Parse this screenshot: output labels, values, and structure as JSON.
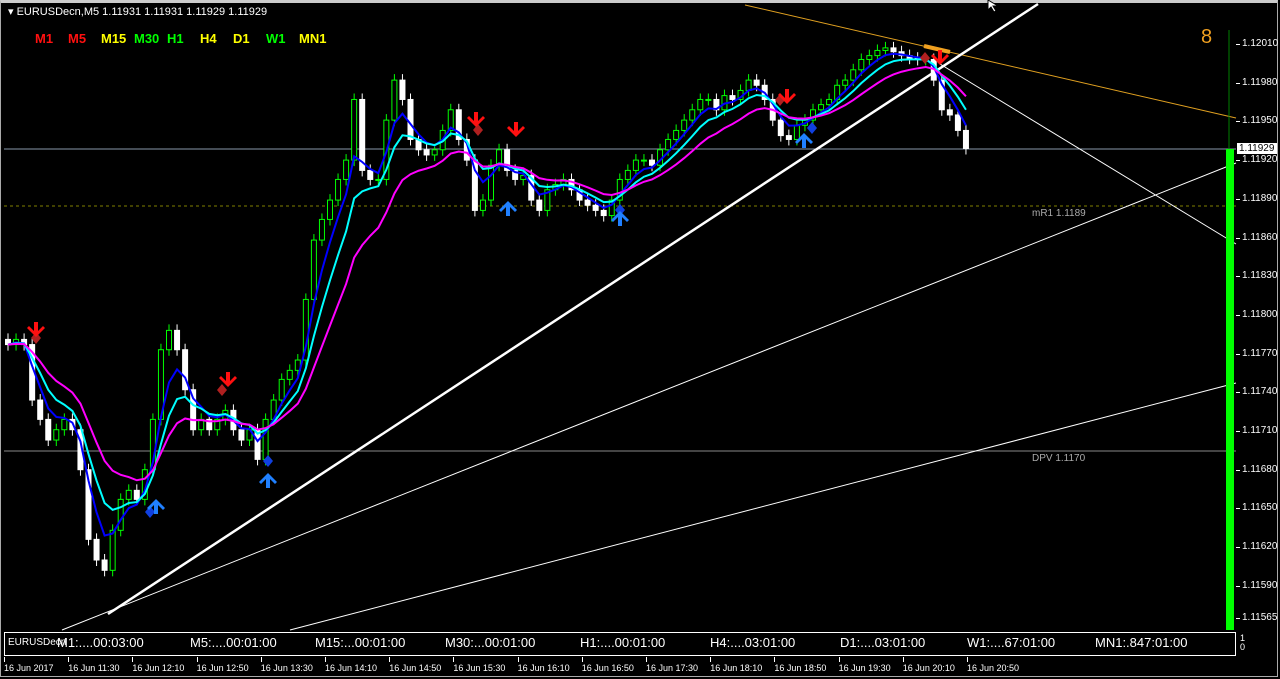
{
  "header": {
    "title": "EURUSDecn,M5  1.11931 1.11931 1.11929 1.11929",
    "menu_icon": "triangle-down-icon"
  },
  "timeframes": [
    {
      "label": "M1",
      "color": "#ff1010"
    },
    {
      "label": "M5",
      "color": "#ff1010"
    },
    {
      "label": "M15",
      "color": "#ffff00"
    },
    {
      "label": "M30",
      "color": "#00ff00"
    },
    {
      "label": "H1",
      "color": "#00ff00"
    },
    {
      "label": "H4",
      "color": "#ffff00"
    },
    {
      "label": "D1",
      "color": "#ffff00"
    },
    {
      "label": "W1",
      "color": "#00ff00"
    },
    {
      "label": "MN1",
      "color": "#ffff00"
    }
  ],
  "counter": "8",
  "levels": {
    "mR1": "mR1 1.1189",
    "DPV": "DPV 1.1170"
  },
  "bid_label": "1.11929",
  "panel": {
    "symbol": "EURUSDecn",
    "timers": [
      "M1:....00:03:00",
      "M5:....00:01:00",
      "M15:...00:01:00",
      "M30:...00:01:00",
      "H1:....00:01:00",
      "H4:....03:01:00",
      "D1:....03:01:00",
      "W1:....67:01:00",
      "MN1:.847:01:00"
    ],
    "scale": [
      "1",
      "0"
    ]
  },
  "chart_data": {
    "type": "candlestick",
    "symbol": "EURUSDecn",
    "timeframe": "M5",
    "ylim": [
      1.11565,
      1.1203
    ],
    "y_ticks": [
      "1.12010",
      "1.11980",
      "1.11950",
      "1.11920",
      "1.11890",
      "1.11860",
      "1.11830",
      "1.11800",
      "1.11770",
      "1.11740",
      "1.11710",
      "1.11680",
      "1.11650",
      "1.11620",
      "1.11590",
      "1.11565"
    ],
    "x_ticks": [
      "16 Jun 2017",
      "16 Jun 11:30",
      "16 Jun 12:10",
      "16 Jun 12:50",
      "16 Jun 13:30",
      "16 Jun 14:10",
      "16 Jun 14:50",
      "16 Jun 15:30",
      "16 Jun 16:10",
      "16 Jun 16:50",
      "16 Jun 17:30",
      "16 Jun 18:10",
      "16 Jun 18:50",
      "16 Jun 19:30",
      "16 Jun 20:10",
      "16 Jun 20:50"
    ],
    "bid": 1.11929,
    "closes": [
      1.11777,
      1.11781,
      1.11777,
      1.11734,
      1.11719,
      1.11703,
      1.11711,
      1.11719,
      1.11711,
      1.1168,
      1.11626,
      1.1161,
      1.11602,
      1.11633,
      1.11657,
      1.11664,
      1.11657,
      1.1168,
      1.11719,
      1.11773,
      1.11788,
      1.11773,
      1.11742,
      1.11711,
      1.11719,
      1.11711,
      1.11719,
      1.11726,
      1.11711,
      1.11703,
      1.11711,
      1.11688,
      1.11719,
      1.11734,
      1.1175,
      1.11757,
      1.11765,
      1.11812,
      1.11858,
      1.11874,
      1.11889,
      1.11905,
      1.1192,
      1.11967,
      1.11912,
      1.11905,
      1.11905,
      1.11951,
      1.11982,
      1.11967,
      1.11936,
      1.11928,
      1.11924,
      1.11928,
      1.11943,
      1.11959,
      1.11936,
      1.1192,
      1.11881,
      1.11889,
      1.11916,
      1.11928,
      1.11912,
      1.11905,
      1.11908,
      1.11889,
      1.11881,
      1.11897,
      1.11901,
      1.11905,
      1.11897,
      1.11889,
      1.11885,
      1.11881,
      1.11877,
      1.11889,
      1.11905,
      1.11912,
      1.1192,
      1.1192,
      1.11916,
      1.11928,
      1.11936,
      1.11943,
      1.11951,
      1.11959,
      1.11967,
      1.11967,
      1.11959,
      1.1197,
      1.11967,
      1.11974,
      1.11982,
      1.11978,
      1.11967,
      1.11951,
      1.11939,
      1.11936,
      1.11947,
      1.11951,
      1.11959,
      1.11963,
      1.11967,
      1.11978,
      1.11982,
      1.1199,
      1.11998,
      1.12001,
      1.12005,
      1.12007,
      1.12004,
      1.12001,
      1.11999,
      1.11998,
      1.11998,
      1.11982,
      1.11959,
      1.11955,
      1.11943,
      1.11929
    ],
    "moving_average_colors": [
      "#0000ff",
      "#00ffff",
      "#ff00ff"
    ],
    "horizontal_levels": [
      1.1189,
      1.117
    ],
    "up_candle_color": "#00ff00",
    "down_candle_color": "#ffffff"
  }
}
